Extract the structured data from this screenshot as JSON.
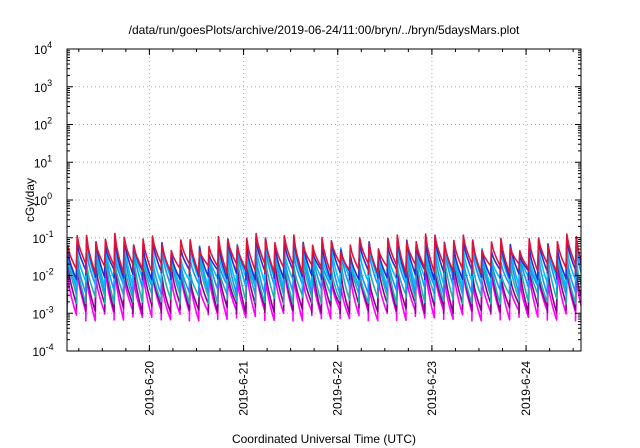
{
  "chart_data": {
    "type": "line",
    "title": "/data/run/goesPlots/archive/2019-06-24/11:00/bryn/../bryn/5daysMars.plot",
    "xlabel": "Coordinated Universal Time (UTC)",
    "ylabel": "cGy/day",
    "yscale": "log",
    "ylim": [
      0.0001,
      10000
    ],
    "xlim": [
      "2019-06-19T03:00",
      "2019-06-24T14:00"
    ],
    "y_ticks": [
      {
        "base": "10",
        "exp": "-4"
      },
      {
        "base": "10",
        "exp": "-3"
      },
      {
        "base": "10",
        "exp": "-2"
      },
      {
        "base": "10",
        "exp": "-1"
      },
      {
        "base": "10",
        "exp": "0"
      },
      {
        "base": "10",
        "exp": "1"
      },
      {
        "base": "10",
        "exp": "2"
      },
      {
        "base": "10",
        "exp": "3"
      },
      {
        "base": "10",
        "exp": "4"
      }
    ],
    "x_ticks": [
      {
        "label": "2019-6-20",
        "date": "2019-06-20T00:00"
      },
      {
        "label": "2019-6-21",
        "date": "2019-06-21T00:00"
      },
      {
        "label": "2019-6-22",
        "date": "2019-06-22T00:00"
      },
      {
        "label": "2019-6-23",
        "date": "2019-06-23T00:00"
      },
      {
        "label": "2019-6-24",
        "date": "2019-06-24T00:00"
      }
    ],
    "grid": true,
    "legend": "none",
    "cycles_per_day": 10,
    "series": [
      {
        "color": "#ff00ff",
        "peak": 0.01,
        "trough": 0.0009
      },
      {
        "color": "#8b008b",
        "peak": 0.016,
        "trough": 0.0014
      },
      {
        "color": "#20b2aa",
        "peak": 0.025,
        "trough": 0.0025
      },
      {
        "color": "#1e90ff",
        "peak": 0.04,
        "trough": 0.0045
      },
      {
        "color": "#00bfff",
        "peak": 0.055,
        "trough": 0.007
      },
      {
        "color": "#2b2bcf",
        "peak": 0.07,
        "trough": 0.011
      },
      {
        "color": "#dc143c",
        "peak": 0.085,
        "trough": 0.016
      }
    ]
  }
}
